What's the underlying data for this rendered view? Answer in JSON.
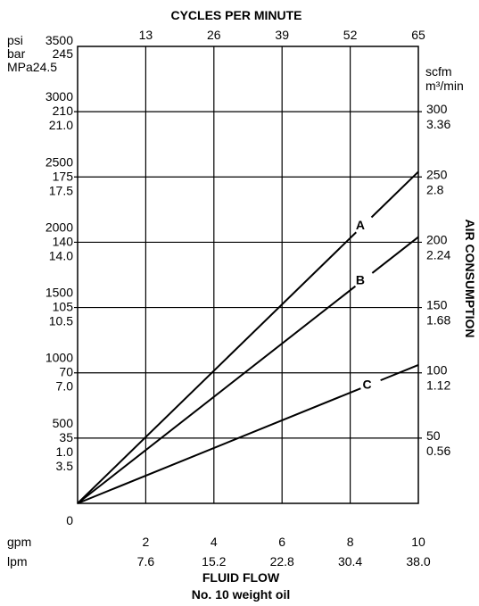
{
  "chart_data": {
    "type": "line",
    "title": "CYCLES PER MINUTE",
    "xlabel": "FLUID FLOW",
    "x_subtitle": "No. 10 weight oil",
    "right_axis_title": "AIR CONSUMPTION",
    "top_axis": {
      "ticks": [
        "13",
        "26",
        "39",
        "52",
        "65"
      ]
    },
    "bottom_axis": {
      "units": [
        "gpm",
        "lpm"
      ],
      "gpm_ticks": [
        "2",
        "4",
        "6",
        "8",
        "10"
      ],
      "lpm_ticks": [
        "7.6",
        "15.2",
        "22.8",
        "30.4",
        "38.0"
      ]
    },
    "left_axis": {
      "units": [
        "psi",
        "bar",
        "MPa"
      ],
      "top_values": [
        "3500",
        "245",
        "24.5"
      ],
      "ticks": [
        [
          "3000",
          "210",
          "21.0"
        ],
        [
          "2500",
          "175",
          "17.5"
        ],
        [
          "2000",
          "140",
          "14.0"
        ],
        [
          "1500",
          "105",
          "10.5"
        ],
        [
          "1000",
          "70",
          "7.0"
        ],
        [
          "500",
          "35",
          "1.0",
          "3.5"
        ]
      ],
      "zero": "0"
    },
    "right_axis": {
      "units": [
        "scfm",
        "m³/min"
      ],
      "ticks": [
        [
          "300",
          "3.36"
        ],
        [
          "250",
          "2.8"
        ],
        [
          "200",
          "2.24"
        ],
        [
          "150",
          "1.68"
        ],
        [
          "100",
          "1.12"
        ],
        [
          "50",
          "0.56"
        ]
      ]
    },
    "xlim": [
      0,
      10
    ],
    "ylim_psi": [
      0,
      3500
    ],
    "series": [
      {
        "name": "A",
        "x": [
          0,
          10
        ],
        "y": [
          0,
          2540
        ]
      },
      {
        "name": "B",
        "x": [
          0,
          10
        ],
        "y": [
          0,
          2040
        ]
      },
      {
        "name": "C",
        "x": [
          0,
          10
        ],
        "y": [
          0,
          1060
        ]
      }
    ]
  }
}
